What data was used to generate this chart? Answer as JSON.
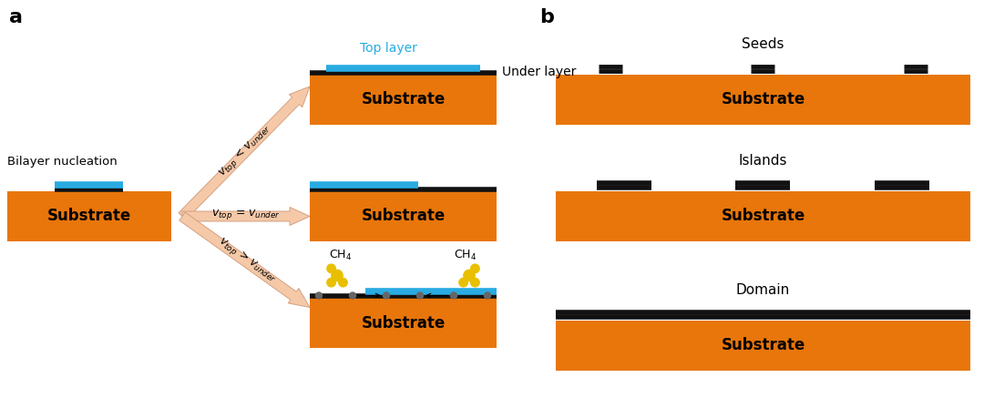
{
  "substrate_color": "#E8760A",
  "blue_layer_color": "#29ABE2",
  "black_layer_color": "#111111",
  "arrow_facecolor": "#F5C9A8",
  "arrow_edgecolor": "#D4A080",
  "bg_color": "white",
  "panel_a_label": "a",
  "panel_b_label": "b",
  "bilayer_nucleation_label": "Bilayer nucleation",
  "top_layer_label": "Top layer",
  "under_layer_label": "Under layer",
  "seeds_label": "Seeds",
  "islands_label": "Islands",
  "domain_label": "Domain",
  "substrate_label": "Substrate",
  "ch4_label": "CH$_4$",
  "yellow_color": "#E8C000",
  "grey_color": "#666666"
}
